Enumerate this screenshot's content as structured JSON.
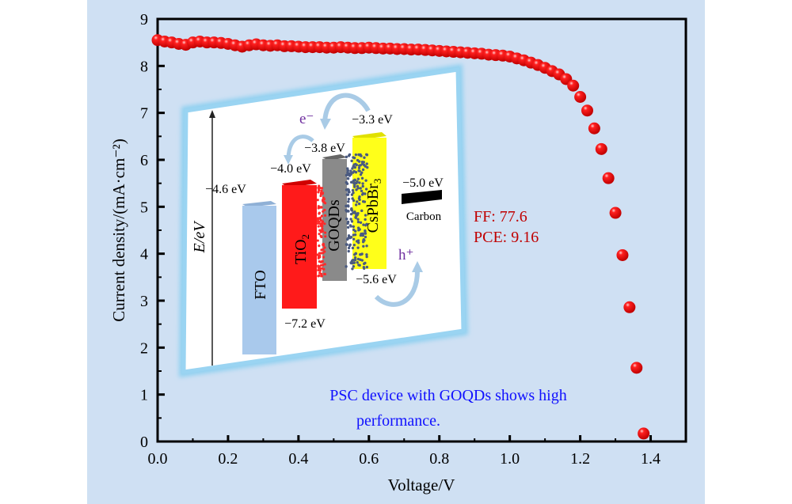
{
  "chart_data": {
    "type": "scatter",
    "xlabel": "Voltage/V",
    "ylabel": "Current density/(mA·cm⁻²)",
    "xlim": [
      0,
      1.5
    ],
    "ylim": [
      0,
      9
    ],
    "x_ticks": [
      "0.0",
      "0.2",
      "0.4",
      "0.6",
      "0.8",
      "1.0",
      "1.2",
      "1.4"
    ],
    "y_ticks": [
      "0",
      "1",
      "2",
      "3",
      "4",
      "5",
      "6",
      "7",
      "8",
      "9"
    ],
    "grid": false,
    "marker_color": "#ff0000",
    "x": [
      0,
      0.02,
      0.04,
      0.06,
      0.08,
      0.1,
      0.12,
      0.14,
      0.16,
      0.18,
      0.2,
      0.22,
      0.24,
      0.26,
      0.28,
      0.3,
      0.32,
      0.34,
      0.36,
      0.38,
      0.4,
      0.42,
      0.44,
      0.46,
      0.48,
      0.5,
      0.52,
      0.54,
      0.56,
      0.58,
      0.6,
      0.62,
      0.64,
      0.66,
      0.68,
      0.7,
      0.72,
      0.74,
      0.76,
      0.78,
      0.8,
      0.82,
      0.84,
      0.86,
      0.88,
      0.9,
      0.92,
      0.94,
      0.96,
      0.98,
      1.0,
      1.02,
      1.04,
      1.06,
      1.08,
      1.1,
      1.12,
      1.14,
      1.16,
      1.18,
      1.2,
      1.22,
      1.24,
      1.26,
      1.28,
      1.3,
      1.32,
      1.34,
      1.36,
      1.38
    ],
    "y": [
      8.55,
      8.52,
      8.5,
      8.47,
      8.45,
      8.5,
      8.52,
      8.5,
      8.5,
      8.49,
      8.47,
      8.44,
      8.41,
      8.44,
      8.46,
      8.44,
      8.43,
      8.44,
      8.42,
      8.42,
      8.41,
      8.4,
      8.4,
      8.4,
      8.39,
      8.39,
      8.4,
      8.39,
      8.38,
      8.38,
      8.39,
      8.38,
      8.37,
      8.37,
      8.36,
      8.36,
      8.35,
      8.35,
      8.34,
      8.33,
      8.32,
      8.31,
      8.3,
      8.29,
      8.28,
      8.27,
      8.26,
      8.24,
      8.23,
      8.22,
      8.2,
      8.16,
      8.12,
      8.07,
      8.02,
      7.96,
      7.89,
      7.82,
      7.72,
      7.58,
      7.34,
      7.05,
      6.67,
      6.23,
      5.61,
      4.87,
      3.97,
      2.86,
      1.57,
      0.17
    ],
    "annotations": {
      "ff": "FF: 77.6",
      "pce": "PCE: 9.16",
      "caption_line1": "PSC device with GOQDs shows high",
      "caption_line2": "performance."
    }
  },
  "inset": {
    "axis_label": "E/eV",
    "layers": {
      "fto": "FTO",
      "tio2": "TiO",
      "tio2_sub": "2",
      "goqds": "GOQDs",
      "cspbbr": "CsPbBr",
      "cspbbr_sub": "3",
      "carbon": "Carbon"
    },
    "levels": {
      "fto": "−4.6 eV",
      "tio2_cb": "−4.0 eV",
      "goqds": "−3.8 eV",
      "cspbbr_cb": "−3.3 eV",
      "carbon": "−5.0 eV",
      "cspbbr_vb": "−5.6 eV",
      "tio2_vb": "−7.2 eV"
    },
    "electron": "e⁻",
    "hole": "h⁺",
    "colors": {
      "fto": "#a9c9ec",
      "tio2": "#ff1a1a",
      "goqds": "#8a8a8a",
      "cspbbr": "#ffff1a",
      "carbon": "#000000",
      "frame": "#8fd0f0",
      "carrier": "#7030a0"
    }
  }
}
